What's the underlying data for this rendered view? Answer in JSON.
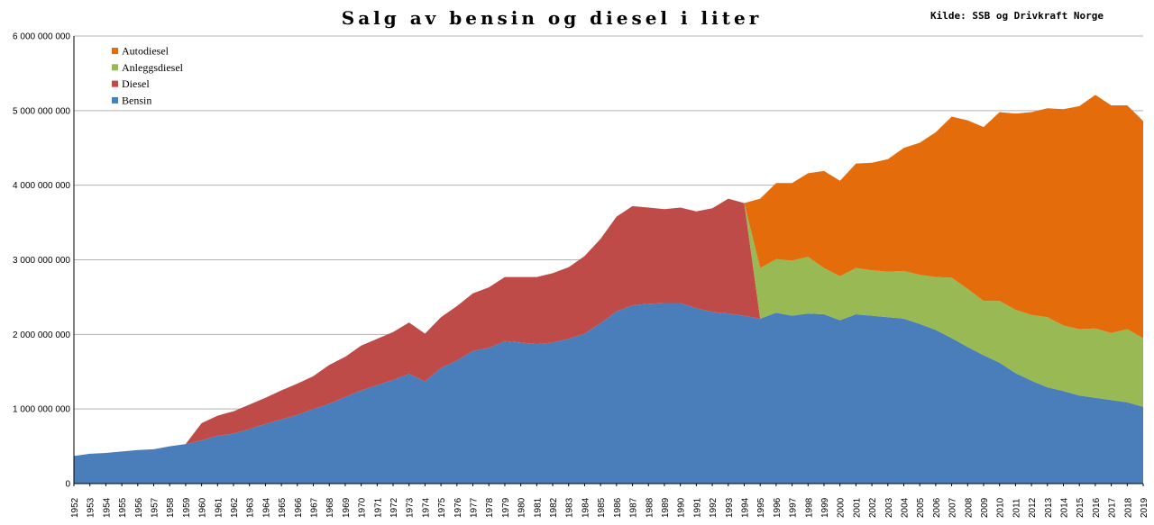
{
  "chart_data": {
    "type": "area",
    "stacked": true,
    "title": "Salg av bensin og diesel i liter",
    "source": "Kilde: SSB og Drivkraft Norge",
    "xlabel": "",
    "ylabel": "",
    "ylim": [
      0,
      6000000000
    ],
    "yticks": [
      0,
      1000000000,
      2000000000,
      3000000000,
      4000000000,
      5000000000,
      6000000000
    ],
    "ytick_labels": [
      "0",
      "1 000 000 000",
      "2 000 000 000",
      "3 000 000 000",
      "4 000 000 000",
      "5 000 000 000",
      "6 000 000 000"
    ],
    "grid": true,
    "legend_position": "top-left",
    "categories": [
      "1952",
      "1953",
      "1954",
      "1955",
      "1956",
      "1957",
      "1958",
      "1959",
      "1960",
      "1961",
      "1962",
      "1963",
      "1964",
      "1965",
      "1966",
      "1967",
      "1968",
      "1969",
      "1970",
      "1971",
      "1972",
      "1973",
      "1974",
      "1975",
      "1976",
      "1977",
      "1978",
      "1979",
      "1980",
      "1981",
      "1982",
      "1983",
      "1984",
      "1985",
      "1986",
      "1987",
      "1988",
      "1989",
      "1990",
      "1991",
      "1992",
      "1993",
      "1994",
      "1995",
      "1996",
      "1997",
      "1998",
      "1999",
      "2000",
      "2001",
      "2002",
      "2003",
      "2004",
      "2005",
      "2006",
      "2007",
      "2008",
      "2009",
      "2010",
      "2011",
      "2012",
      "2013",
      "2014",
      "2015",
      "2016",
      "2017",
      "2018",
      "2019"
    ],
    "series": [
      {
        "name": "Bensin",
        "color": "#4a7ebb",
        "values": [
          370000000,
          400000000,
          410000000,
          430000000,
          450000000,
          460000000,
          500000000,
          530000000,
          580000000,
          640000000,
          670000000,
          730000000,
          800000000,
          860000000,
          920000000,
          1000000000,
          1070000000,
          1160000000,
          1250000000,
          1320000000,
          1390000000,
          1470000000,
          1370000000,
          1550000000,
          1650000000,
          1780000000,
          1820000000,
          1910000000,
          1890000000,
          1870000000,
          1890000000,
          1940000000,
          2010000000,
          2150000000,
          2310000000,
          2390000000,
          2410000000,
          2420000000,
          2420000000,
          2350000000,
          2300000000,
          2280000000,
          2250000000,
          2210000000,
          2290000000,
          2250000000,
          2280000000,
          2270000000,
          2190000000,
          2270000000,
          2250000000,
          2230000000,
          2210000000,
          2140000000,
          2060000000,
          1950000000,
          1830000000,
          1720000000,
          1620000000,
          1480000000,
          1380000000,
          1290000000,
          1240000000,
          1180000000,
          1150000000,
          1120000000,
          1090000000,
          1030000000
        ]
      },
      {
        "name": "Diesel",
        "color": "#be4b48",
        "values": [
          0,
          0,
          0,
          0,
          0,
          0,
          0,
          0,
          230000000,
          270000000,
          300000000,
          330000000,
          350000000,
          390000000,
          420000000,
          440000000,
          520000000,
          540000000,
          600000000,
          620000000,
          640000000,
          690000000,
          640000000,
          680000000,
          730000000,
          770000000,
          810000000,
          860000000,
          880000000,
          900000000,
          930000000,
          960000000,
          1040000000,
          1130000000,
          1270000000,
          1330000000,
          1290000000,
          1260000000,
          1280000000,
          1300000000,
          1390000000,
          1540000000,
          1510000000,
          0,
          0,
          0,
          0,
          0,
          0,
          0,
          0,
          0,
          0,
          0,
          0,
          0,
          0,
          0,
          0,
          0,
          0,
          0,
          0,
          0,
          0,
          0,
          0,
          0
        ]
      },
      {
        "name": "Anleggsdiesel",
        "color": "#98b954",
        "values": [
          0,
          0,
          0,
          0,
          0,
          0,
          0,
          0,
          0,
          0,
          0,
          0,
          0,
          0,
          0,
          0,
          0,
          0,
          0,
          0,
          0,
          0,
          0,
          0,
          0,
          0,
          0,
          0,
          0,
          0,
          0,
          0,
          0,
          0,
          0,
          0,
          0,
          0,
          0,
          0,
          0,
          0,
          0,
          680000000,
          720000000,
          740000000,
          760000000,
          620000000,
          590000000,
          620000000,
          610000000,
          610000000,
          640000000,
          660000000,
          710000000,
          810000000,
          780000000,
          730000000,
          830000000,
          850000000,
          880000000,
          940000000,
          880000000,
          890000000,
          930000000,
          900000000,
          980000000,
          920000000
        ]
      },
      {
        "name": "Autodiesel",
        "color": "#e46c0a",
        "values": [
          0,
          0,
          0,
          0,
          0,
          0,
          0,
          0,
          0,
          0,
          0,
          0,
          0,
          0,
          0,
          0,
          0,
          0,
          0,
          0,
          0,
          0,
          0,
          0,
          0,
          0,
          0,
          0,
          0,
          0,
          0,
          0,
          0,
          0,
          0,
          0,
          0,
          0,
          0,
          0,
          0,
          0,
          0,
          930000000,
          1020000000,
          1040000000,
          1120000000,
          1300000000,
          1280000000,
          1400000000,
          1440000000,
          1510000000,
          1650000000,
          1770000000,
          1940000000,
          2160000000,
          2260000000,
          2330000000,
          2530000000,
          2630000000,
          2720000000,
          2800000000,
          2900000000,
          2990000000,
          3130000000,
          3050000000,
          3000000000,
          2910000000
        ]
      }
    ],
    "legend_order": [
      "Autodiesel",
      "Anleggsdiesel",
      "Diesel",
      "Bensin"
    ]
  }
}
